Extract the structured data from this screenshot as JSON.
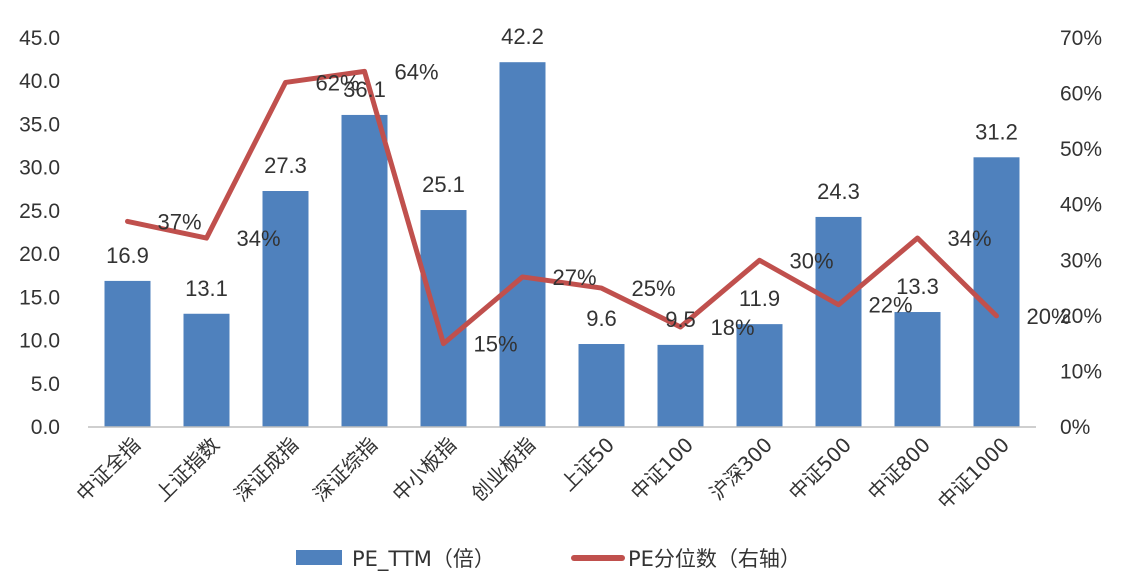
{
  "chart_data": {
    "type": "bar",
    "categories": [
      "中证全指",
      "上证指数",
      "深证成指",
      "深证综指",
      "中小板指",
      "创业板指",
      "上证50",
      "中证100",
      "沪深300",
      "中证500",
      "中证800",
      "中证1000"
    ],
    "series": [
      {
        "name": "PE_TTM（倍）",
        "type": "bar",
        "axis": "left",
        "color": "#4F81BD",
        "values": [
          16.9,
          13.1,
          27.3,
          36.1,
          25.1,
          42.2,
          9.6,
          9.5,
          11.9,
          24.3,
          13.3,
          31.2
        ],
        "labels": [
          "16.9",
          "13.1",
          "27.3",
          "36.1",
          "25.1",
          "42.2",
          "9.6",
          "9.5",
          "11.9",
          "24.3",
          "13.3",
          "31.2"
        ]
      },
      {
        "name": "PE分位数（右轴）",
        "type": "line",
        "axis": "right",
        "color": "#C0504D",
        "values": [
          37,
          34,
          62,
          64,
          15,
          27,
          25,
          18,
          30,
          22,
          34,
          20
        ],
        "labels": [
          "37%",
          "34%",
          "62%",
          "64%",
          "15%",
          "27%",
          "25%",
          "18%",
          "30%",
          "22%",
          "34%",
          "20%"
        ]
      }
    ],
    "y_left": {
      "min": 0,
      "max": 45,
      "ticks": [
        "0.0",
        "5.0",
        "10.0",
        "15.0",
        "20.0",
        "25.0",
        "30.0",
        "35.0",
        "40.0",
        "45.0"
      ]
    },
    "y_right": {
      "min": 0,
      "max": 70,
      "ticks": [
        "0%",
        "10%",
        "20%",
        "30%",
        "40%",
        "50%",
        "60%",
        "70%"
      ]
    },
    "legend": "bottom",
    "grid": false
  }
}
